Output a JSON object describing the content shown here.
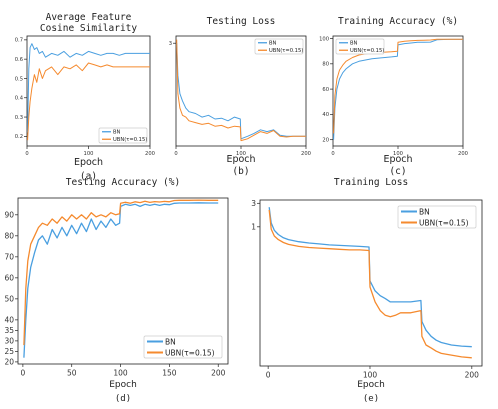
{
  "colors": {
    "bn": "#4a9fe0",
    "ubn": "#f58a2e"
  },
  "chart_data": [
    {
      "id": "a",
      "type": "line",
      "title": [
        "Average Feature",
        "Cosine Similarity"
      ],
      "xlabel": "Epoch",
      "caption": "(a)",
      "xlim": [
        0,
        200
      ],
      "ylim": [
        0.15,
        0.72
      ],
      "xticks": [
        0,
        100,
        200
      ],
      "xtick_labels": [
        "0",
        "100",
        "200"
      ],
      "yticks": [
        0.2,
        0.3,
        0.4,
        0.5,
        0.6,
        0.7
      ],
      "ytick_labels": [
        "0.2",
        "0.3",
        "0.4",
        "0.5",
        "0.6",
        "0.7"
      ],
      "legend": {
        "position": "lower-right"
      },
      "series": [
        {
          "name": "BN",
          "key": "bn",
          "x": [
            1,
            3,
            5,
            8,
            12,
            16,
            20,
            25,
            30,
            40,
            50,
            60,
            70,
            80,
            90,
            100,
            110,
            120,
            130,
            140,
            150,
            160,
            170,
            180,
            190,
            200
          ],
          "y": [
            0.22,
            0.55,
            0.66,
            0.68,
            0.65,
            0.66,
            0.63,
            0.64,
            0.61,
            0.63,
            0.62,
            0.64,
            0.61,
            0.63,
            0.62,
            0.64,
            0.63,
            0.62,
            0.63,
            0.63,
            0.62,
            0.63,
            0.63,
            0.63,
            0.63,
            0.63
          ]
        },
        {
          "name": "UBN(τ=0.15)",
          "key": "ubn",
          "x": [
            1,
            3,
            5,
            8,
            12,
            16,
            20,
            25,
            30,
            40,
            50,
            60,
            70,
            80,
            90,
            100,
            110,
            120,
            130,
            140,
            150,
            160,
            170,
            180,
            190,
            200
          ],
          "y": [
            0.18,
            0.3,
            0.38,
            0.45,
            0.52,
            0.48,
            0.55,
            0.5,
            0.54,
            0.56,
            0.52,
            0.56,
            0.55,
            0.57,
            0.54,
            0.58,
            0.57,
            0.56,
            0.57,
            0.56,
            0.56,
            0.56,
            0.56,
            0.56,
            0.56,
            0.56
          ]
        }
      ]
    },
    {
      "id": "b",
      "type": "line",
      "title": [
        "Testing Loss"
      ],
      "xlabel": "Epoch",
      "caption": "(b)",
      "xlim": [
        0,
        200
      ],
      "ylim": [
        0.15,
        3.2
      ],
      "xticks": [
        0,
        100,
        200
      ],
      "xtick_labels": [
        "0",
        "100",
        "200"
      ],
      "yticks": [
        3
      ],
      "ytick_labels": [
        "3"
      ],
      "legend": {
        "position": "upper-right"
      },
      "series": [
        {
          "name": "BN",
          "key": "bn",
          "x": [
            1,
            3,
            6,
            10,
            15,
            20,
            30,
            40,
            50,
            60,
            70,
            80,
            90,
            99,
            100,
            110,
            120,
            130,
            140,
            150,
            160,
            170,
            180,
            190,
            200
          ],
          "y": [
            3.0,
            2.1,
            1.6,
            1.4,
            1.2,
            1.1,
            1.05,
            0.95,
            1.0,
            0.9,
            0.92,
            0.85,
            0.95,
            0.9,
            0.35,
            0.42,
            0.5,
            0.6,
            0.55,
            0.6,
            0.45,
            0.42,
            0.42,
            0.42,
            0.42
          ]
        },
        {
          "name": "UBN(τ=0.15)",
          "key": "ubn",
          "x": [
            1,
            3,
            6,
            10,
            15,
            20,
            30,
            40,
            50,
            60,
            70,
            80,
            90,
            99,
            100,
            110,
            120,
            130,
            140,
            150,
            160,
            170,
            180,
            190,
            200
          ],
          "y": [
            3.1,
            1.6,
            1.2,
            1.0,
            0.95,
            0.85,
            0.8,
            0.75,
            0.78,
            0.7,
            0.72,
            0.65,
            0.7,
            0.68,
            0.3,
            0.35,
            0.45,
            0.55,
            0.5,
            0.58,
            0.42,
            0.4,
            0.42,
            0.42,
            0.42
          ]
        }
      ]
    },
    {
      "id": "c",
      "type": "line",
      "title": [
        "Training Accuracy (%)"
      ],
      "xlabel": "Epoch",
      "caption": "(c)",
      "xlim": [
        0,
        200
      ],
      "ylim": [
        15,
        102
      ],
      "xticks": [
        0,
        100,
        200
      ],
      "xtick_labels": [
        "0",
        "100",
        "200"
      ],
      "yticks": [
        20,
        40,
        60,
        80,
        100
      ],
      "ytick_labels": [
        "20",
        "40",
        "60",
        "80",
        "100"
      ],
      "legend": {
        "position": "upper-left"
      },
      "series": [
        {
          "name": "BN",
          "key": "bn",
          "x": [
            1,
            3,
            6,
            10,
            15,
            20,
            30,
            40,
            50,
            60,
            70,
            80,
            90,
            99,
            100,
            110,
            120,
            130,
            140,
            150,
            160,
            170,
            180,
            190,
            200
          ],
          "y": [
            20,
            45,
            60,
            68,
            73,
            76,
            80,
            82,
            83,
            84,
            84.5,
            85,
            85.5,
            86,
            95,
            96,
            96.5,
            97,
            97,
            97.2,
            99,
            99.2,
            99.3,
            99.3,
            99.3
          ]
        },
        {
          "name": "UBN(τ=0.15)",
          "key": "ubn",
          "x": [
            1,
            3,
            6,
            10,
            15,
            20,
            30,
            40,
            50,
            60,
            70,
            80,
            90,
            99,
            100,
            110,
            120,
            130,
            140,
            150,
            160,
            170,
            180,
            190,
            200
          ],
          "y": [
            25,
            55,
            68,
            75,
            79,
            82,
            85,
            87,
            88,
            88.5,
            89,
            89.3,
            89.6,
            90,
            97,
            97.8,
            98.2,
            98.5,
            98.7,
            98.8,
            99.4,
            99.5,
            99.5,
            99.5,
            99.5
          ]
        }
      ]
    },
    {
      "id": "d",
      "type": "line",
      "title": [
        "Testing Accuracy (%)"
      ],
      "xlabel": "Epoch",
      "caption": "(d)",
      "xlim": [
        -5,
        210
      ],
      "ylim": [
        19,
        98
      ],
      "xticks": [
        0,
        50,
        100,
        150,
        200
      ],
      "xtick_labels": [
        "0",
        "50",
        "100",
        "150",
        "200"
      ],
      "yticks": [
        20,
        25,
        30,
        35,
        40,
        50,
        60,
        70,
        80,
        90
      ],
      "ytick_labels": [
        "20",
        "25",
        "30",
        "35",
        "40",
        "50",
        "60",
        "70",
        "80",
        "90"
      ],
      "legend": {
        "position": "lower-right"
      },
      "series": [
        {
          "name": "BN",
          "key": "bn",
          "x": [
            1,
            3,
            5,
            8,
            12,
            16,
            20,
            25,
            30,
            35,
            40,
            45,
            50,
            55,
            60,
            65,
            70,
            75,
            80,
            85,
            90,
            95,
            99,
            100,
            105,
            110,
            115,
            120,
            125,
            130,
            135,
            140,
            145,
            150,
            155,
            160,
            170,
            180,
            190,
            200
          ],
          "y": [
            22,
            40,
            55,
            65,
            72,
            78,
            80,
            76,
            83,
            79,
            84,
            80,
            85,
            81,
            86,
            82,
            88,
            83,
            87,
            84,
            88,
            85,
            86,
            94,
            95,
            94.5,
            95,
            94,
            95,
            94.5,
            95,
            94.5,
            95,
            94.8,
            95.5,
            95.6,
            95.6,
            95.7,
            95.6,
            95.6
          ]
        },
        {
          "name": "UBN(τ=0.15)",
          "key": "ubn",
          "x": [
            1,
            3,
            5,
            8,
            12,
            16,
            20,
            25,
            30,
            35,
            40,
            45,
            50,
            55,
            60,
            65,
            70,
            75,
            80,
            85,
            90,
            95,
            99,
            100,
            105,
            110,
            115,
            120,
            125,
            130,
            135,
            140,
            145,
            150,
            155,
            160,
            170,
            180,
            190,
            200
          ],
          "y": [
            28,
            55,
            68,
            76,
            80,
            84,
            86,
            85,
            88,
            86,
            89,
            87,
            90,
            88,
            90,
            88,
            91,
            89,
            90,
            89,
            91,
            90,
            90.5,
            95.5,
            96,
            95.5,
            96.2,
            95.8,
            96.5,
            95.9,
            96.3,
            96.1,
            96.4,
            96.2,
            96.8,
            96.9,
            96.9,
            97,
            96.9,
            96.9
          ]
        }
      ]
    },
    {
      "id": "e",
      "type": "line",
      "title": [
        "Training Loss"
      ],
      "xlabel": "Epoch",
      "caption": "(e)",
      "xlim": [
        -8,
        210
      ],
      "ylim": [
        0.0015,
        3.5
      ],
      "yscale": "log",
      "xticks": [
        0,
        100,
        200
      ],
      "xtick_labels": [
        "0",
        "100",
        "200"
      ],
      "yticks": [
        1,
        3
      ],
      "ytick_labels": [
        "1",
        "3"
      ],
      "legend": {
        "position": "upper-right"
      },
      "series": [
        {
          "name": "BN",
          "key": "bn",
          "x": [
            1,
            3,
            6,
            10,
            15,
            20,
            30,
            40,
            50,
            60,
            70,
            80,
            90,
            99,
            100,
            105,
            110,
            115,
            120,
            125,
            130,
            140,
            150,
            151,
            155,
            160,
            165,
            170,
            180,
            190,
            200
          ],
          "y": [
            2.5,
            1.2,
            0.85,
            0.7,
            0.6,
            0.55,
            0.5,
            0.47,
            0.45,
            0.43,
            0.42,
            0.41,
            0.4,
            0.39,
            0.08,
            0.05,
            0.04,
            0.035,
            0.03,
            0.03,
            0.03,
            0.03,
            0.032,
            0.012,
            0.008,
            0.006,
            0.005,
            0.0045,
            0.004,
            0.0038,
            0.0037
          ]
        },
        {
          "name": "UBN(τ=0.15)",
          "key": "ubn",
          "x": [
            1,
            3,
            6,
            10,
            15,
            20,
            30,
            40,
            50,
            60,
            70,
            80,
            90,
            99,
            100,
            105,
            110,
            115,
            120,
            125,
            130,
            140,
            150,
            151,
            155,
            160,
            165,
            170,
            180,
            190,
            200
          ],
          "y": [
            2.2,
            0.9,
            0.65,
            0.55,
            0.48,
            0.44,
            0.4,
            0.38,
            0.37,
            0.36,
            0.35,
            0.34,
            0.34,
            0.33,
            0.06,
            0.03,
            0.02,
            0.016,
            0.015,
            0.016,
            0.018,
            0.018,
            0.02,
            0.006,
            0.004,
            0.0035,
            0.003,
            0.0027,
            0.0025,
            0.0023,
            0.0022
          ]
        }
      ]
    }
  ]
}
